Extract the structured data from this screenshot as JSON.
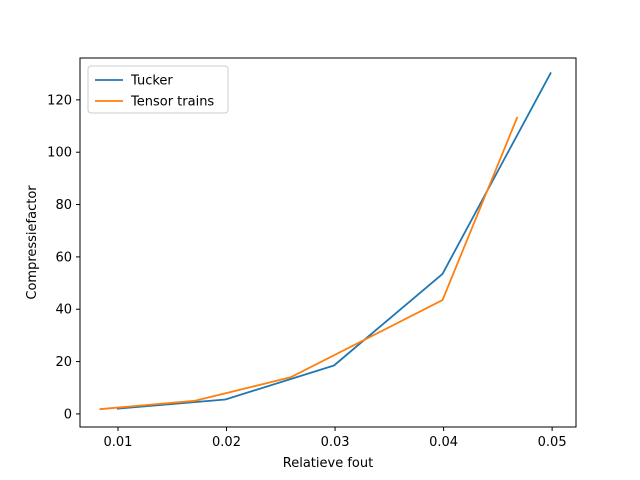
{
  "chart_data": {
    "type": "line",
    "title": "",
    "xlabel": "Relatieve fout",
    "ylabel": "Compressiefactor",
    "xlim": [
      0.0065,
      0.0522
    ],
    "ylim": [
      -5,
      136
    ],
    "x_ticks": [
      {
        "value": 0.01,
        "label": "0.01"
      },
      {
        "value": 0.02,
        "label": "0.02"
      },
      {
        "value": 0.03,
        "label": "0.03"
      },
      {
        "value": 0.04,
        "label": "0.04"
      },
      {
        "value": 0.05,
        "label": "0.05"
      }
    ],
    "y_ticks": [
      {
        "value": 0,
        "label": "0"
      },
      {
        "value": 20,
        "label": "20"
      },
      {
        "value": 40,
        "label": "40"
      },
      {
        "value": 60,
        "label": "60"
      },
      {
        "value": 80,
        "label": "80"
      },
      {
        "value": 100,
        "label": "100"
      },
      {
        "value": 120,
        "label": "120"
      }
    ],
    "grid": false,
    "legend_position": "top-left",
    "series": [
      {
        "name": "Tucker",
        "color": "#1f77b4",
        "x": [
          0.0099,
          0.0199,
          0.0299,
          0.0399,
          0.0499
        ],
        "y": [
          2,
          5.5,
          18.5,
          53.5,
          130.5
        ]
      },
      {
        "name": "Tensor trains",
        "color": "#ff7f0e",
        "x": [
          0.0083,
          0.0171,
          0.0259,
          0.0399,
          0.0468
        ],
        "y": [
          1.8,
          5,
          14,
          43.5,
          113.5
        ]
      }
    ]
  }
}
